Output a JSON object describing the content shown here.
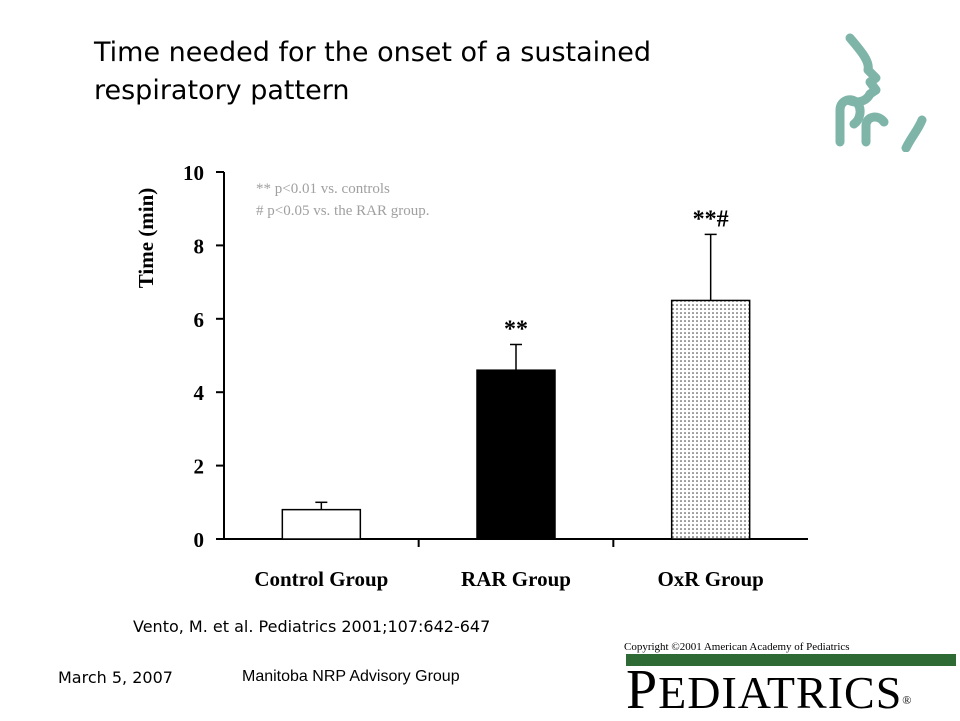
{
  "slide": {
    "title": "Time needed for the onset of a sustained respiratory pattern",
    "citation": "Vento, M. et al. Pediatrics 2001;107:642-647",
    "copyright": "Copyright ©2001 American Academy of Pediatrics",
    "footer_date": "March 5, 2007",
    "footer_group": "Manitoba NRP Advisory Group",
    "brand_first": "P",
    "brand_rest": "EDIATRICS",
    "brand_mark": "®",
    "logo_icon": "face-profile-logo-icon",
    "brand_color": "#2e6b34",
    "logo_color": "#7fb5a8"
  },
  "chart_data": {
    "type": "bar",
    "title": "",
    "xlabel": "",
    "ylabel": "Time (min)",
    "ylim": [
      0,
      10
    ],
    "yticks": [
      "0",
      "2",
      "4",
      "6",
      "8",
      "10"
    ],
    "categories": [
      "Control Group",
      "RAR Group",
      "OxR Group"
    ],
    "values": [
      0.8,
      4.6,
      6.5
    ],
    "errors": [
      0.2,
      0.7,
      1.8
    ],
    "significance": [
      "",
      "**",
      "**#"
    ],
    "fills": [
      "white",
      "black",
      "dotted"
    ],
    "annotations": [
      "** p<0.01 vs. controls",
      "# p<0.05 vs. the RAR group."
    ],
    "annotation_color": "#a0a0a0",
    "grid": false,
    "legend": "none"
  }
}
